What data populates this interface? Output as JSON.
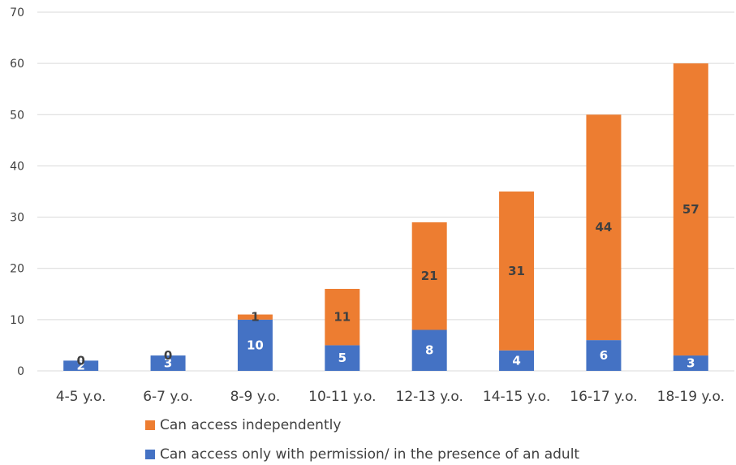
{
  "chart_data": {
    "type": "bar",
    "stacked": true,
    "categories": [
      "4-5 y.o.",
      "6-7 y.o.",
      "8-9 y.o.",
      "10-11 y.o.",
      "12-13 y.o.",
      "14-15 y.o.",
      "16-17 y.o.",
      "18-19 y.o."
    ],
    "series": [
      {
        "name": "Can access only with permission/ in the presence of an adult",
        "color": "#4472C4",
        "values": [
          2,
          3,
          10,
          5,
          8,
          4,
          6,
          3
        ],
        "labels": [
          "2",
          "3",
          "10",
          "5",
          "8",
          "4",
          "6",
          "3"
        ]
      },
      {
        "name": "Can access independently",
        "color": "#ED7D31",
        "values": [
          0,
          0,
          1,
          11,
          21,
          31,
          44,
          57
        ],
        "labels": [
          "0",
          "0",
          "1",
          "11",
          "21",
          "31",
          "44",
          "57"
        ]
      }
    ],
    "yticks": [
      "0",
      "10",
      "20",
      "30",
      "40",
      "50",
      "60",
      "70"
    ],
    "ylim": [
      0,
      70
    ],
    "grid": true,
    "legend_position": "bottom"
  }
}
